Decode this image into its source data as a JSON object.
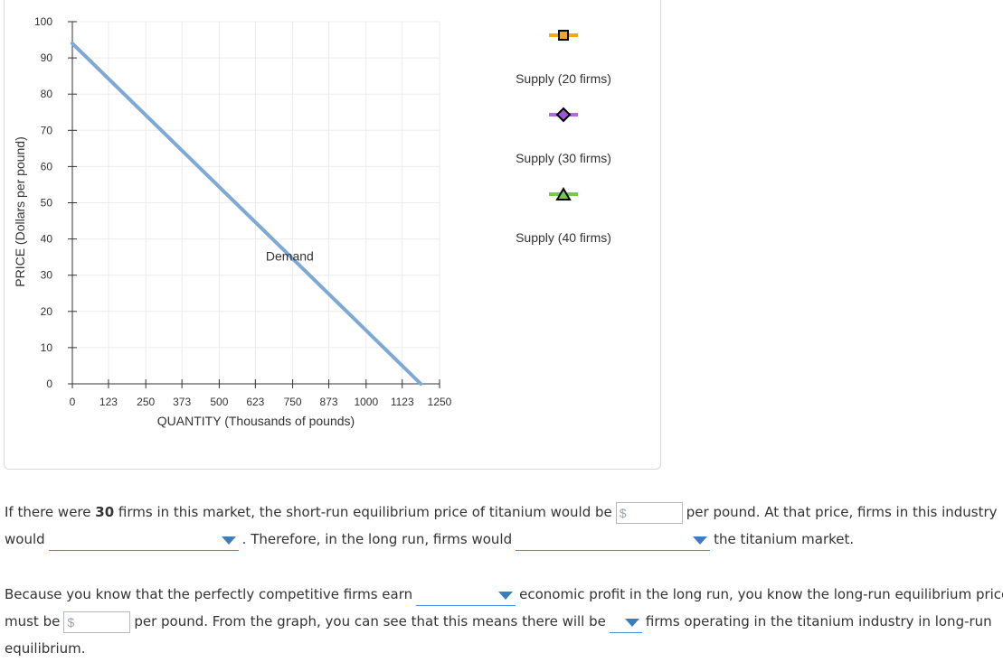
{
  "chart_data": {
    "type": "line",
    "title": "",
    "xlabel": "QUANTITY (Thousands of pounds)",
    "ylabel": "PRICE (Dollars per pound)",
    "xlim": [
      0,
      1250
    ],
    "ylim": [
      0,
      100
    ],
    "x_ticks": [
      0,
      123,
      250,
      373,
      500,
      623,
      750,
      873,
      1000,
      1123,
      1250
    ],
    "y_ticks": [
      0,
      10,
      20,
      30,
      40,
      50,
      60,
      70,
      80,
      90,
      100
    ],
    "series": [
      {
        "name": "Demand",
        "color": "#7ea9d4",
        "points": [
          [
            0,
            94
          ],
          [
            1186,
            0
          ]
        ],
        "label": "Demand",
        "label_at": [
          740,
          34
        ]
      }
    ],
    "legend": [
      {
        "name": "Supply (20 firms)",
        "marker": "square",
        "line_color": "#f5a623",
        "fill": "#f5a623",
        "stroke": "#000000"
      },
      {
        "name": "Supply (30 firms)",
        "marker": "diamond",
        "line_color": "#b36bd9",
        "fill": "#9b59c9",
        "stroke": "#000000"
      },
      {
        "name": "Supply (40 firms)",
        "marker": "triangle",
        "line_color": "#7ac943",
        "fill": "#7ac943",
        "stroke": "#000000"
      }
    ],
    "grid": true
  },
  "question1": {
    "line1_pre": "If there were ",
    "firms_count": "30",
    "line1_mid": " firms in this market, the short-run equilibrium price of titanium would be",
    "price_placeholder": "$",
    "line1_post": "per pound. At that price, firms in this industry",
    "line2_pre": "would",
    "line2_mid": ". Therefore, in the long run, firms would",
    "line2_post": "the titanium market."
  },
  "question2": {
    "line1_pre": "Because you know that the perfectly competitive firms earn",
    "line1_post": "economic profit in the long run, you know the long-run equilibrium price",
    "line2_pre": "must be",
    "price_placeholder": "$",
    "line2_mid": "per pound. From the graph, you can see that this means there will be",
    "line2_post": "firms operating in the titanium industry in long-run",
    "line3": "equilibrium."
  }
}
